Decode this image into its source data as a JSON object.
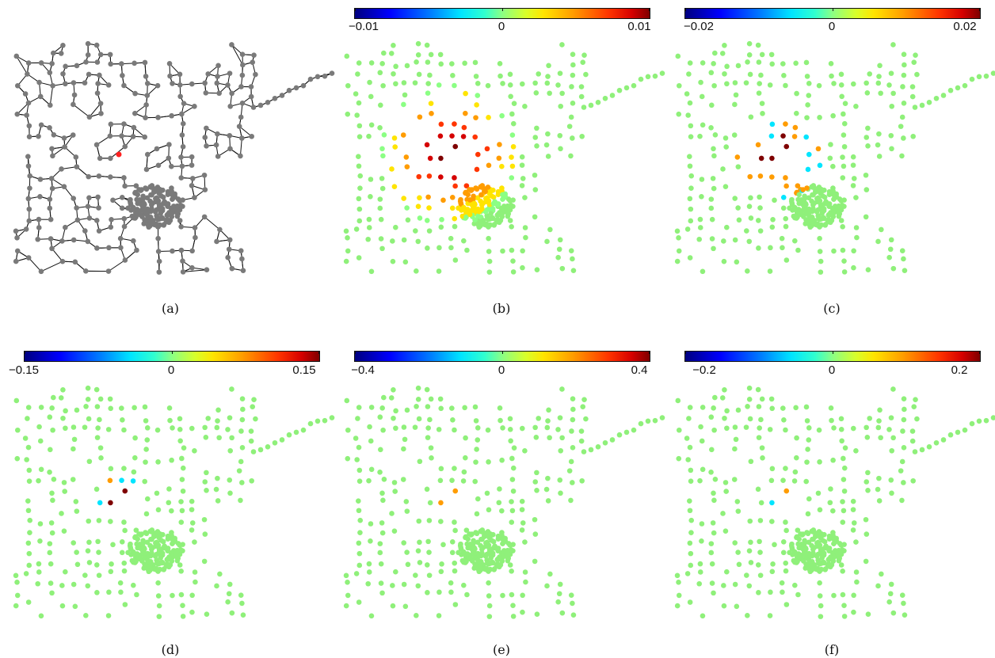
{
  "panels": [
    {
      "caption": "(a)",
      "type": "graph"
    },
    {
      "caption": "(b)",
      "colorbar": {
        "min_label": "−0.01",
        "zero_label": "0",
        "max_label": "0.01"
      }
    },
    {
      "caption": "(c)",
      "colorbar": {
        "min_label": "−0.02",
        "zero_label": "0",
        "max_label": "0.02"
      }
    },
    {
      "caption": "(d)",
      "colorbar": {
        "min_label": "−0.15",
        "zero_label": "0",
        "max_label": "0.15"
      }
    },
    {
      "caption": "(e)",
      "colorbar": {
        "min_label": "−0.4",
        "zero_label": "0",
        "max_label": "0.4"
      }
    },
    {
      "caption": "(f)",
      "colorbar": {
        "min_label": "−0.2",
        "zero_label": "0",
        "max_label": "0.2"
      }
    }
  ],
  "colors": {
    "node_gray": "#7a7a7a",
    "edge": "#111111",
    "highlight": "#ff2020",
    "base_green": "#8ff07a"
  }
}
